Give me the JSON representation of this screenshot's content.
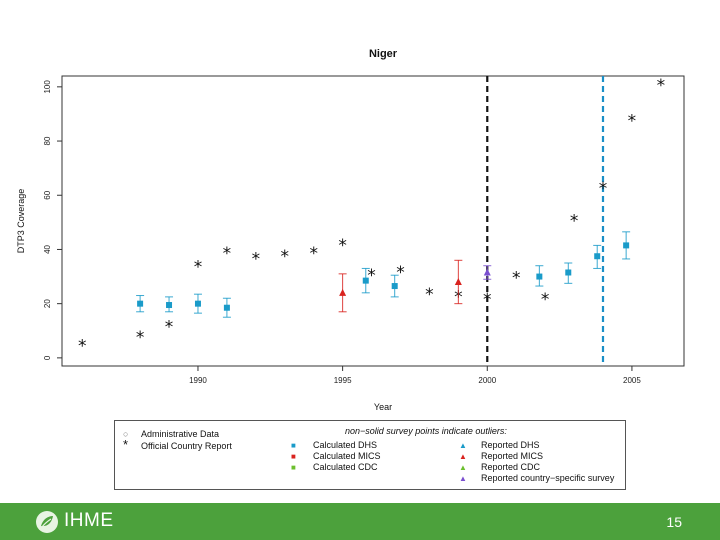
{
  "chart_data": {
    "type": "scatter",
    "title": "Niger",
    "xlabel": "Year",
    "ylabel": "DTP3 Coverage",
    "xlim": [
      1985.3,
      2006.8
    ],
    "ylim": [
      -3,
      104
    ],
    "x_ticks": [
      1990,
      1995,
      2000,
      2005
    ],
    "y_ticks": [
      0,
      20,
      40,
      60,
      80,
      100
    ],
    "vlines": [
      {
        "x": 2000,
        "color": "#111111",
        "style": "dashed"
      },
      {
        "x": 2004,
        "color": "#1a8fc7",
        "style": "dashed"
      }
    ],
    "series": [
      {
        "name": "Official Country Report",
        "marker": "*",
        "color": "#111111",
        "points": [
          {
            "x": 1986,
            "y": 5
          },
          {
            "x": 1988,
            "y": 8
          },
          {
            "x": 1989,
            "y": 12
          },
          {
            "x": 1990,
            "y": 34
          },
          {
            "x": 1991,
            "y": 39
          },
          {
            "x": 1992,
            "y": 37
          },
          {
            "x": 1993,
            "y": 38
          },
          {
            "x": 1994,
            "y": 39
          },
          {
            "x": 1995,
            "y": 42
          },
          {
            "x": 1996,
            "y": 31
          },
          {
            "x": 1997,
            "y": 32
          },
          {
            "x": 1998,
            "y": 24
          },
          {
            "x": 1999,
            "y": 23
          },
          {
            "x": 2000,
            "y": 22
          },
          {
            "x": 2001,
            "y": 30
          },
          {
            "x": 2002,
            "y": 22
          },
          {
            "x": 2003,
            "y": 51
          },
          {
            "x": 2004,
            "y": 63
          },
          {
            "x": 2005,
            "y": 88
          },
          {
            "x": 2006,
            "y": 101
          }
        ]
      },
      {
        "name": "Calculated DHS",
        "marker": "square",
        "color": "#1a9bc9",
        "points": [
          {
            "x": 1988,
            "y": 20,
            "lo": 17,
            "hi": 23
          },
          {
            "x": 1989,
            "y": 19.5,
            "lo": 17,
            "hi": 22.5
          },
          {
            "x": 1990,
            "y": 20,
            "lo": 16.5,
            "hi": 23.5
          },
          {
            "x": 1991,
            "y": 18.5,
            "lo": 15,
            "hi": 22
          },
          {
            "x": 1995.8,
            "y": 28.5,
            "lo": 24,
            "hi": 33
          },
          {
            "x": 1996.8,
            "y": 26.5,
            "lo": 22.5,
            "hi": 30.5
          },
          {
            "x": 2001.8,
            "y": 30,
            "lo": 26.5,
            "hi": 34
          },
          {
            "x": 2002.8,
            "y": 31.5,
            "lo": 27.5,
            "hi": 35
          },
          {
            "x": 2003.8,
            "y": 37.5,
            "lo": 33,
            "hi": 41.5
          },
          {
            "x": 2004.8,
            "y": 41.5,
            "lo": 36.5,
            "hi": 46.5
          }
        ]
      },
      {
        "name": "Reported MICS",
        "marker": "triangle",
        "color": "#d9231f",
        "points": [
          {
            "x": 1995,
            "y": 24,
            "lo": 17,
            "hi": 31
          },
          {
            "x": 1999,
            "y": 28,
            "lo": 20,
            "hi": 36
          }
        ]
      },
      {
        "name": "Reported country-specific survey",
        "marker": "triangle",
        "color": "#7a4fd0",
        "points": [
          {
            "x": 2000,
            "y": 31.5,
            "lo": 29,
            "hi": 34
          }
        ]
      }
    ]
  },
  "legend": {
    "title": "non−solid survey points indicate outliers:",
    "items": [
      {
        "label": "Administrative Data",
        "symbol": "○",
        "color": "#777777"
      },
      {
        "label": "Official Country Report",
        "symbol": "*",
        "color": "#111111"
      },
      {
        "label": "Calculated DHS",
        "symbol": "■",
        "color": "#1a9bc9"
      },
      {
        "label": "Calculated MICS",
        "symbol": "■",
        "color": "#d9231f"
      },
      {
        "label": "Calculated CDC",
        "symbol": "■",
        "color": "#6cbf2e"
      },
      {
        "label": "Reported DHS",
        "symbol": "▲",
        "color": "#1a9bc9"
      },
      {
        "label": "Reported MICS",
        "symbol": "▲",
        "color": "#d9231f"
      },
      {
        "label": "Reported CDC",
        "symbol": "▲",
        "color": "#6cbf2e"
      },
      {
        "label": "Reported country−specific survey",
        "symbol": "▲",
        "color": "#7a4fd0"
      }
    ]
  },
  "footer": {
    "logo_text": "IHME",
    "page_number": "15",
    "logo_icon": "leaf-globe-icon"
  }
}
